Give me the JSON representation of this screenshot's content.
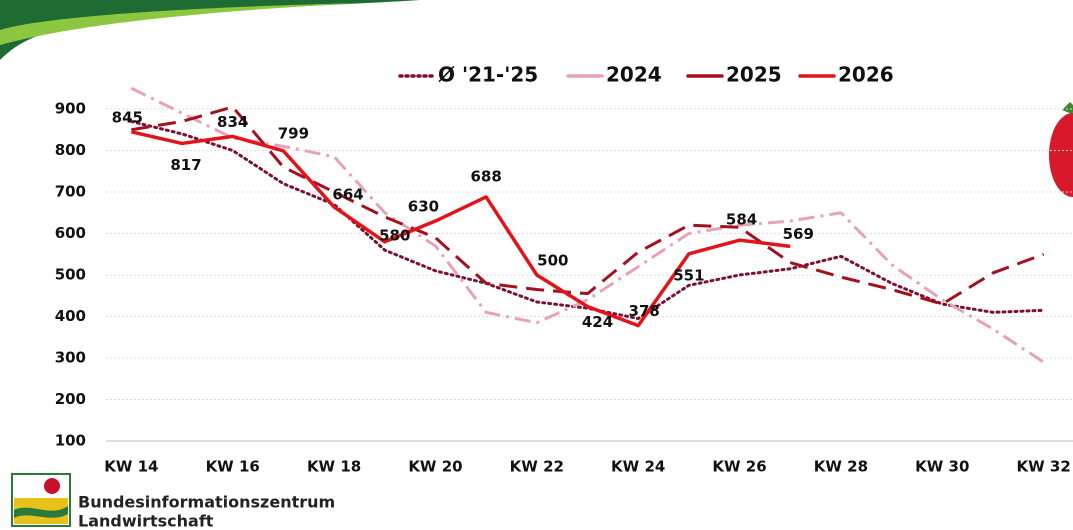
{
  "chart_data": {
    "type": "line",
    "categories": [
      "KW 14",
      null,
      "KW 16",
      null,
      "KW 18",
      null,
      "KW 20",
      null,
      "KW 22",
      null,
      "KW 24",
      null,
      "KW 26",
      null,
      "KW 28",
      null,
      "KW 30",
      null,
      "KW 32"
    ],
    "series": [
      {
        "name": "Ø '21-'25",
        "color": "#7b1234",
        "line_style": "dotted",
        "values": [
          870,
          840,
          800,
          720,
          670,
          560,
          510,
          480,
          435,
          420,
          395,
          475,
          500,
          515,
          545,
          480,
          430,
          410,
          415
        ]
      },
      {
        "name": "2024",
        "color": "#e6a3b8",
        "line_style": "dash-dot",
        "values": [
          950,
          890,
          830,
          810,
          785,
          650,
          570,
          410,
          385,
          440,
          520,
          600,
          620,
          630,
          650,
          525,
          440,
          370,
          290
        ]
      },
      {
        "name": "2025",
        "color": "#a3101f",
        "line_style": "dashed",
        "values": [
          850,
          870,
          905,
          760,
          700,
          640,
          590,
          480,
          465,
          455,
          555,
          620,
          615,
          530,
          495,
          465,
          430,
          505,
          550
        ]
      },
      {
        "name": "2026",
        "color": "#e3131b",
        "line_style": "solid",
        "show_labels": true,
        "values": [
          845,
          817,
          834,
          799,
          664,
          580,
          630,
          688,
          500,
          424,
          378,
          551,
          584,
          569,
          null,
          null,
          null,
          null,
          null
        ]
      }
    ],
    "ylim": [
      100,
      1000
    ],
    "yticks": [
      100,
      200,
      300,
      400,
      500,
      600,
      700,
      800,
      900
    ],
    "grid": true
  },
  "footer": {
    "logo_text": [
      "Bundesinformationszentrum",
      "Landwirtschaft"
    ]
  }
}
